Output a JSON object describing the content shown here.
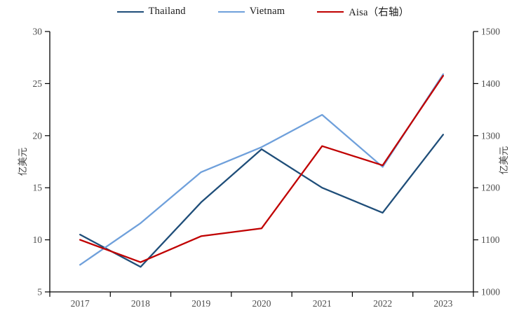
{
  "chart_data": {
    "type": "line",
    "title": "",
    "categories": [
      "2017",
      "2018",
      "2019",
      "2020",
      "2021",
      "2022",
      "2023"
    ],
    "series": [
      {
        "name": "Thailand",
        "axis": "left",
        "color": "#1F4E79",
        "values": [
          10.5,
          7.4,
          13.6,
          18.7,
          15.0,
          12.6,
          20.1
        ]
      },
      {
        "name": "Vietnam",
        "axis": "left",
        "color": "#6FA0DB",
        "values": [
          7.6,
          11.6,
          16.5,
          18.9,
          22.0,
          17.0,
          25.9
        ]
      },
      {
        "name": "Aisa（右轴）",
        "axis": "right",
        "color": "#C00000",
        "values": [
          1100,
          1057,
          1107,
          1122,
          1280,
          1243,
          1415
        ]
      }
    ],
    "left_axis": {
      "label": "亿美元",
      "min": 5,
      "max": 30,
      "ticks": [
        5,
        10,
        15,
        20,
        25,
        30
      ]
    },
    "right_axis": {
      "label": "亿美元",
      "min": 1000,
      "max": 1500,
      "ticks": [
        1000,
        1100,
        1200,
        1300,
        1400,
        1500
      ]
    },
    "xlabel": "",
    "ylabel_left": "亿美元",
    "ylabel_right": "亿美元",
    "legend_position": "top",
    "grid": false
  }
}
